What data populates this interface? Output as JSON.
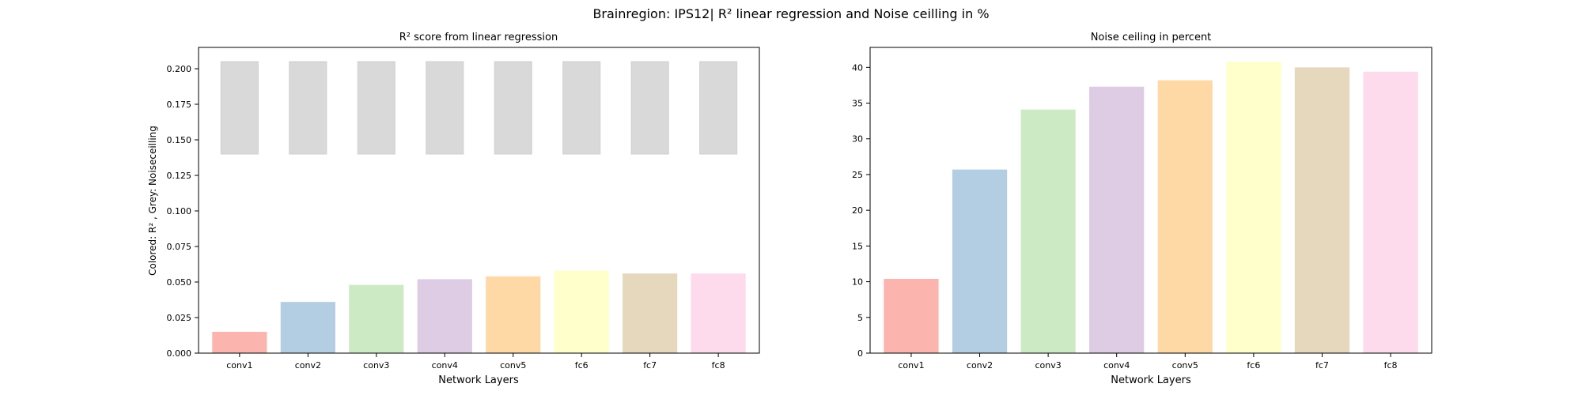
{
  "figure": {
    "suptitle": "Brainregion: IPS12| R² linear regression and Noise ceilling in %"
  },
  "colors": [
    "#fbb4ae",
    "#b3cde3",
    "#ccebc5",
    "#decbe4",
    "#fed9a6",
    "#ffffcc",
    "#e5d8bd",
    "#fddaec"
  ],
  "noise_color": "#d9d9d9",
  "chart_data": [
    {
      "type": "bar",
      "title": "R² score from linear regression",
      "xlabel": "Network Layers",
      "ylabel": "Colored: R² , Grey: Noiseceilling",
      "categories": [
        "conv1",
        "conv2",
        "conv3",
        "conv4",
        "conv5",
        "fc6",
        "fc7",
        "fc8"
      ],
      "series": [
        {
          "values": [
            0.015,
            0.036,
            0.048,
            0.052,
            0.054,
            0.058,
            0.056,
            0.056
          ]
        },
        {
          "type": "floating-bar",
          "bottom": [
            0.14,
            0.14,
            0.14,
            0.14,
            0.14,
            0.14,
            0.14,
            0.14
          ],
          "top": [
            0.205,
            0.205,
            0.205,
            0.205,
            0.205,
            0.205,
            0.205,
            0.205
          ]
        }
      ],
      "ylim": [
        0,
        0.215
      ],
      "yticks": [
        0.0,
        0.025,
        0.05,
        0.075,
        0.1,
        0.125,
        0.15,
        0.175,
        0.2
      ],
      "ytick_labels": [
        "0.000",
        "0.025",
        "0.050",
        "0.075",
        "0.100",
        "0.125",
        "0.150",
        "0.175",
        "0.200"
      ],
      "grid": false
    },
    {
      "type": "bar",
      "title": "Noise ceiling in percent",
      "xlabel": "Network Layers",
      "ylabel": "",
      "categories": [
        "conv1",
        "conv2",
        "conv3",
        "conv4",
        "conv5",
        "fc6",
        "fc7",
        "fc8"
      ],
      "values": [
        10.4,
        25.7,
        34.1,
        37.3,
        38.2,
        40.8,
        40.0,
        39.4
      ],
      "ylim": [
        0,
        42.8
      ],
      "yticks": [
        0,
        5,
        10,
        15,
        20,
        25,
        30,
        35,
        40
      ],
      "ytick_labels": [
        "0",
        "5",
        "10",
        "15",
        "20",
        "25",
        "30",
        "35",
        "40"
      ],
      "grid": false
    }
  ]
}
